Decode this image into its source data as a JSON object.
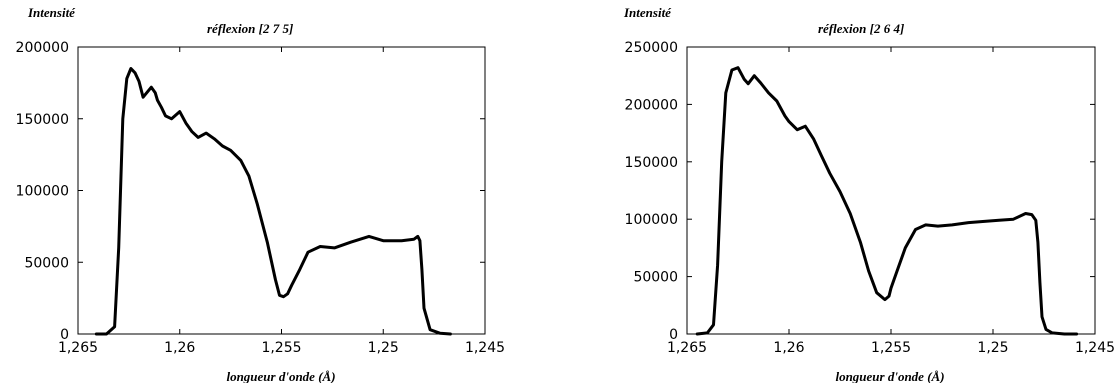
{
  "chart_data": [
    {
      "type": "line",
      "title": "réflexion  [2  7  5]",
      "ylabel": "Intensité",
      "xlabel": "longueur d'onde (Å)",
      "xlim": [
        1.265,
        1.245
      ],
      "ylim": [
        0,
        200000
      ],
      "x_ticks": [
        1.265,
        1.26,
        1.255,
        1.25,
        1.245
      ],
      "x_tick_labels": [
        "1,265",
        "1,26",
        "1,255",
        "1,25",
        "1,245"
      ],
      "y_ticks": [
        0,
        50000,
        100000,
        150000,
        200000
      ],
      "y_tick_labels": [
        "0",
        "50000",
        "100000",
        "150000",
        "200000"
      ],
      "grid": false,
      "series": [
        {
          "color": "#000000",
          "x": [
            1.2641,
            1.2636,
            1.2632,
            1.263,
            1.2628,
            1.2626,
            1.2624,
            1.2622,
            1.262,
            1.2618,
            1.2614,
            1.2612,
            1.2611,
            1.2609,
            1.2607,
            1.2604,
            1.26,
            1.2597,
            1.2594,
            1.2591,
            1.2587,
            1.2583,
            1.2579,
            1.2575,
            1.257,
            1.2566,
            1.2562,
            1.2557,
            1.2553,
            1.2551,
            1.2549,
            1.2547,
            1.2545,
            1.2541,
            1.2537,
            1.2531,
            1.2524,
            1.2516,
            1.2507,
            1.25,
            1.2491,
            1.2485,
            1.2483,
            1.2482,
            1.2481,
            1.248,
            1.2477,
            1.2472,
            1.2467
          ],
          "y": [
            0,
            0,
            5000,
            60000,
            150000,
            178000,
            185000,
            182000,
            176000,
            165000,
            172000,
            168000,
            163000,
            158000,
            152000,
            150000,
            155000,
            147000,
            141000,
            137000,
            140000,
            136000,
            131000,
            128000,
            121000,
            110000,
            91000,
            64000,
            38000,
            27000,
            26000,
            28000,
            34000,
            45000,
            57000,
            61000,
            60000,
            64000,
            68000,
            65000,
            65000,
            66000,
            68000,
            65000,
            45000,
            18000,
            3000,
            500,
            0
          ]
        }
      ]
    },
    {
      "type": "line",
      "title": "réflexion  [2  6  4]",
      "ylabel": "Intensité",
      "xlabel": "longueur d'onde (Å)",
      "xlim": [
        1.265,
        1.245
      ],
      "ylim": [
        0,
        250000
      ],
      "x_ticks": [
        1.265,
        1.26,
        1.255,
        1.25,
        1.245
      ],
      "x_tick_labels": [
        "1,265",
        "1,26",
        "1,255",
        "1,25",
        "1,245"
      ],
      "y_ticks": [
        0,
        50000,
        100000,
        150000,
        200000,
        250000
      ],
      "y_tick_labels": [
        "0",
        "50000",
        "100000",
        "150000",
        "200000",
        "250000"
      ],
      "grid": false,
      "series": [
        {
          "color": "#000000",
          "x": [
            1.2645,
            1.264,
            1.2637,
            1.2635,
            1.2633,
            1.2631,
            1.2628,
            1.2625,
            1.2622,
            1.262,
            1.2617,
            1.2614,
            1.261,
            1.2606,
            1.2602,
            1.26,
            1.2596,
            1.2592,
            1.2588,
            1.2584,
            1.258,
            1.2575,
            1.257,
            1.2565,
            1.2561,
            1.2557,
            1.2553,
            1.2551,
            1.255,
            1.2547,
            1.2543,
            1.2538,
            1.2533,
            1.2527,
            1.252,
            1.2512,
            1.2505,
            1.2497,
            1.249,
            1.2484,
            1.2481,
            1.2479,
            1.2478,
            1.2477,
            1.2476,
            1.2474,
            1.2471,
            1.2465,
            1.2459
          ],
          "y": [
            0,
            1000,
            8000,
            60000,
            150000,
            210000,
            230000,
            232000,
            222000,
            218000,
            225000,
            219000,
            210000,
            203000,
            190000,
            185000,
            178000,
            181000,
            170000,
            155000,
            140000,
            124000,
            105000,
            80000,
            55000,
            36000,
            30000,
            33000,
            40000,
            55000,
            75000,
            91000,
            95000,
            94000,
            95000,
            97000,
            98000,
            99000,
            100000,
            105000,
            104000,
            99000,
            80000,
            45000,
            15000,
            4000,
            1000,
            0,
            0
          ]
        }
      ]
    }
  ]
}
